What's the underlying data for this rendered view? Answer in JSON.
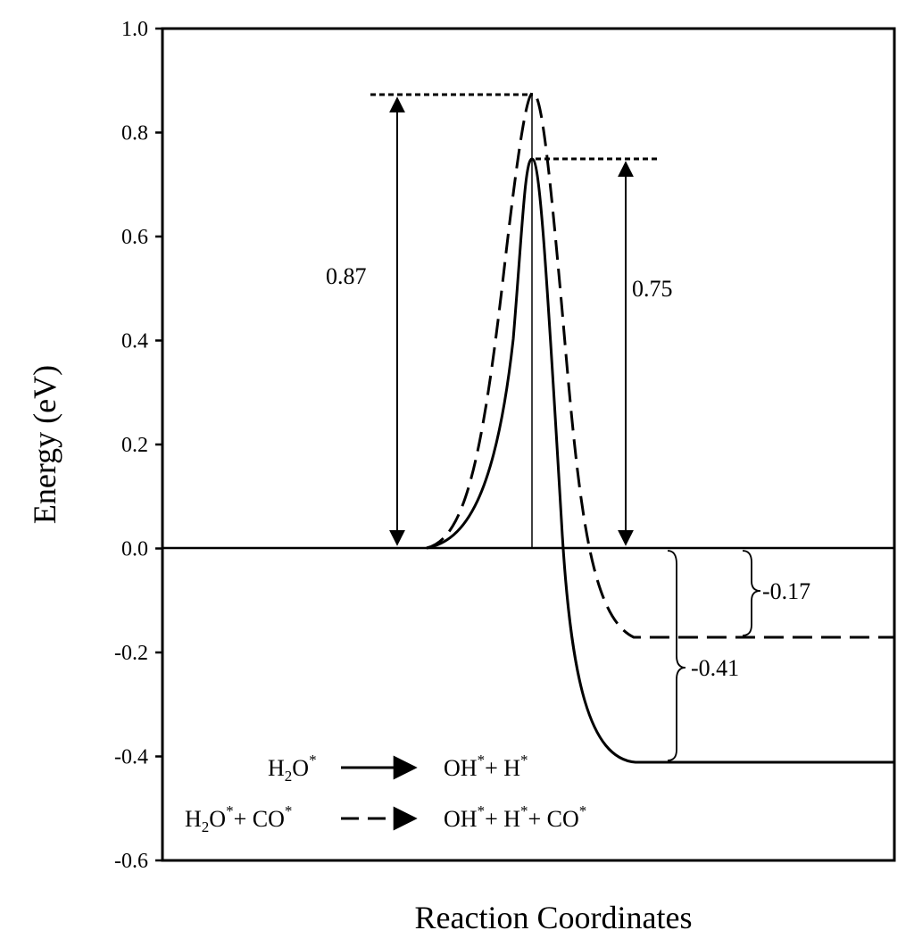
{
  "chart_data": {
    "type": "line",
    "title": "",
    "xlabel": "Reaction Coordinates",
    "ylabel": "Energy (eV)",
    "ylim": [
      -0.6,
      1.0
    ],
    "yticks": [
      "1.0",
      "0.8",
      "0.6",
      "0.4",
      "0.2",
      "0.0",
      "-0.2",
      "-0.4",
      "-0.6"
    ],
    "grid": false,
    "series": [
      {
        "name": "H2O* → OH* + H*",
        "style": "solid",
        "color": "#000000",
        "points": [
          [
            0.52,
            0.0
          ],
          [
            0.6,
            0.04
          ],
          [
            0.66,
            0.2
          ],
          [
            0.7,
            0.5
          ],
          [
            0.72,
            0.75
          ],
          [
            0.74,
            0.6
          ],
          [
            0.76,
            0.1
          ],
          [
            0.78,
            -0.2
          ],
          [
            0.82,
            -0.36
          ],
          [
            0.87,
            -0.41
          ],
          [
            1.25,
            -0.41
          ]
        ],
        "barrier": 0.75,
        "reaction_energy": -0.41
      },
      {
        "name": "H2O* + CO* → OH* + H* + CO*",
        "style": "dashed",
        "color": "#000000",
        "points": [
          [
            0.52,
            0.0
          ],
          [
            0.6,
            0.06
          ],
          [
            0.65,
            0.3
          ],
          [
            0.69,
            0.7
          ],
          [
            0.72,
            0.87
          ],
          [
            0.75,
            0.7
          ],
          [
            0.78,
            0.2
          ],
          [
            0.82,
            -0.12
          ],
          [
            0.87,
            -0.17
          ],
          [
            1.25,
            -0.17
          ]
        ],
        "barrier": 0.87,
        "reaction_energy": -0.17
      }
    ],
    "annotations": {
      "barrier_dashed": "0.87",
      "barrier_solid": "0.75",
      "reaction_dashed": "-0.17",
      "reaction_solid": "-0.41"
    },
    "legend": {
      "placement": "bottom-left",
      "entries": [
        {
          "reactant": "H2O*",
          "product": "OH*+ H*",
          "style": "solid"
        },
        {
          "reactant": "H2O*+ CO*",
          "product": "OH*+ H*+ CO*",
          "style": "dashed"
        }
      ]
    }
  }
}
